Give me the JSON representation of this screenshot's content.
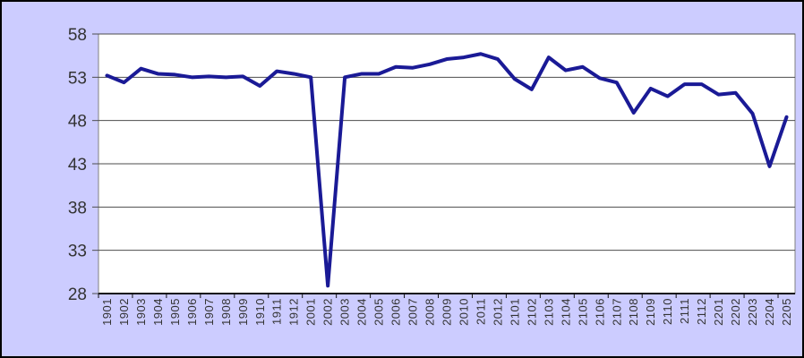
{
  "chart_data": {
    "type": "line",
    "title": "",
    "xlabel": "",
    "ylabel": "",
    "categories": [
      "1901",
      "1902",
      "1903",
      "1904",
      "1905",
      "1906",
      "1907",
      "1908",
      "1909",
      "1910",
      "1911",
      "1912",
      "2001",
      "2002",
      "2003",
      "2004",
      "2005",
      "2006",
      "2007",
      "2008",
      "2009",
      "2010",
      "2011",
      "2012",
      "2101",
      "2102",
      "2103",
      "2104",
      "2105",
      "2106",
      "2107",
      "2108",
      "2109",
      "2110",
      "2111",
      "2112",
      "2201",
      "2202",
      "2203",
      "2204",
      "2205"
    ],
    "series": [
      {
        "values": [
          53.2,
          52.4,
          54.0,
          53.4,
          53.3,
          53.0,
          53.1,
          53.0,
          53.1,
          52.0,
          53.7,
          53.4,
          53.0,
          28.9,
          53.0,
          53.4,
          53.4,
          54.2,
          54.1,
          54.5,
          55.1,
          55.3,
          55.7,
          55.1,
          52.8,
          51.6,
          55.3,
          53.8,
          54.2,
          52.9,
          52.4,
          48.9,
          51.7,
          50.8,
          52.2,
          52.2,
          51.0,
          51.2,
          48.8,
          42.7,
          48.4
        ]
      }
    ],
    "ylim": [
      28,
      58
    ],
    "yticks": [
      28,
      33,
      38,
      43,
      48,
      53,
      58
    ],
    "grid": true,
    "legend": false,
    "x_tick_interval": 2
  },
  "colors": {
    "background": "#ccccff",
    "plot_background": "#ffffff",
    "plot_border": "#808080",
    "gridline": "#4d4d4d",
    "axis": "#111111",
    "line": "#1a1a96",
    "label": "#333333",
    "outer_border": "#000000"
  }
}
